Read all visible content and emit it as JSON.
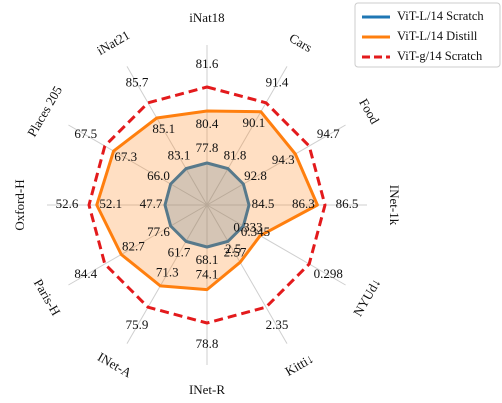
{
  "chart_data": {
    "type": "radar",
    "categories": [
      "iNat18",
      "Cars",
      "Food",
      "INet-1k",
      "NYUd↓",
      "Kitti↓",
      "INet-R",
      "INet-A",
      "Paris-H",
      "Oxford-H",
      "Places 205",
      "iNat21"
    ],
    "reverse_axes": [
      4,
      5
    ],
    "legend": "upper right",
    "series": [
      {
        "name": "ViT-L/14 Scratch",
        "color": "#1f77b4",
        "linestyle": "solid",
        "fill": true,
        "values": [
          77.8,
          81.8,
          92.8,
          84.5,
          0.345,
          2.57,
          68.1,
          61.7,
          77.6,
          47.7,
          66.0,
          83.1
        ],
        "value_labels": [
          "77.8",
          "81.8",
          "92.8",
          "84.5",
          "0.345",
          "2.57",
          "68.1",
          "61.7",
          "77.6",
          "47.7",
          "66.0",
          "83.1"
        ]
      },
      {
        "name": "ViT-L/14 Distill",
        "color": "#ff7f0e",
        "linestyle": "solid",
        "fill": true,
        "values": [
          80.4,
          90.1,
          94.3,
          86.3,
          0.333,
          2.5,
          74.1,
          71.3,
          82.7,
          52.1,
          67.3,
          85.1
        ]
      },
      {
        "name": "ViT-g/14 Scratch",
        "color": "#e31a1c",
        "linestyle": "dashed",
        "fill": false,
        "values": [
          81.6,
          91.4,
          94.7,
          86.5,
          0.298,
          2.35,
          78.8,
          75.9,
          84.4,
          52.6,
          67.5,
          85.7
        ]
      }
    ]
  }
}
